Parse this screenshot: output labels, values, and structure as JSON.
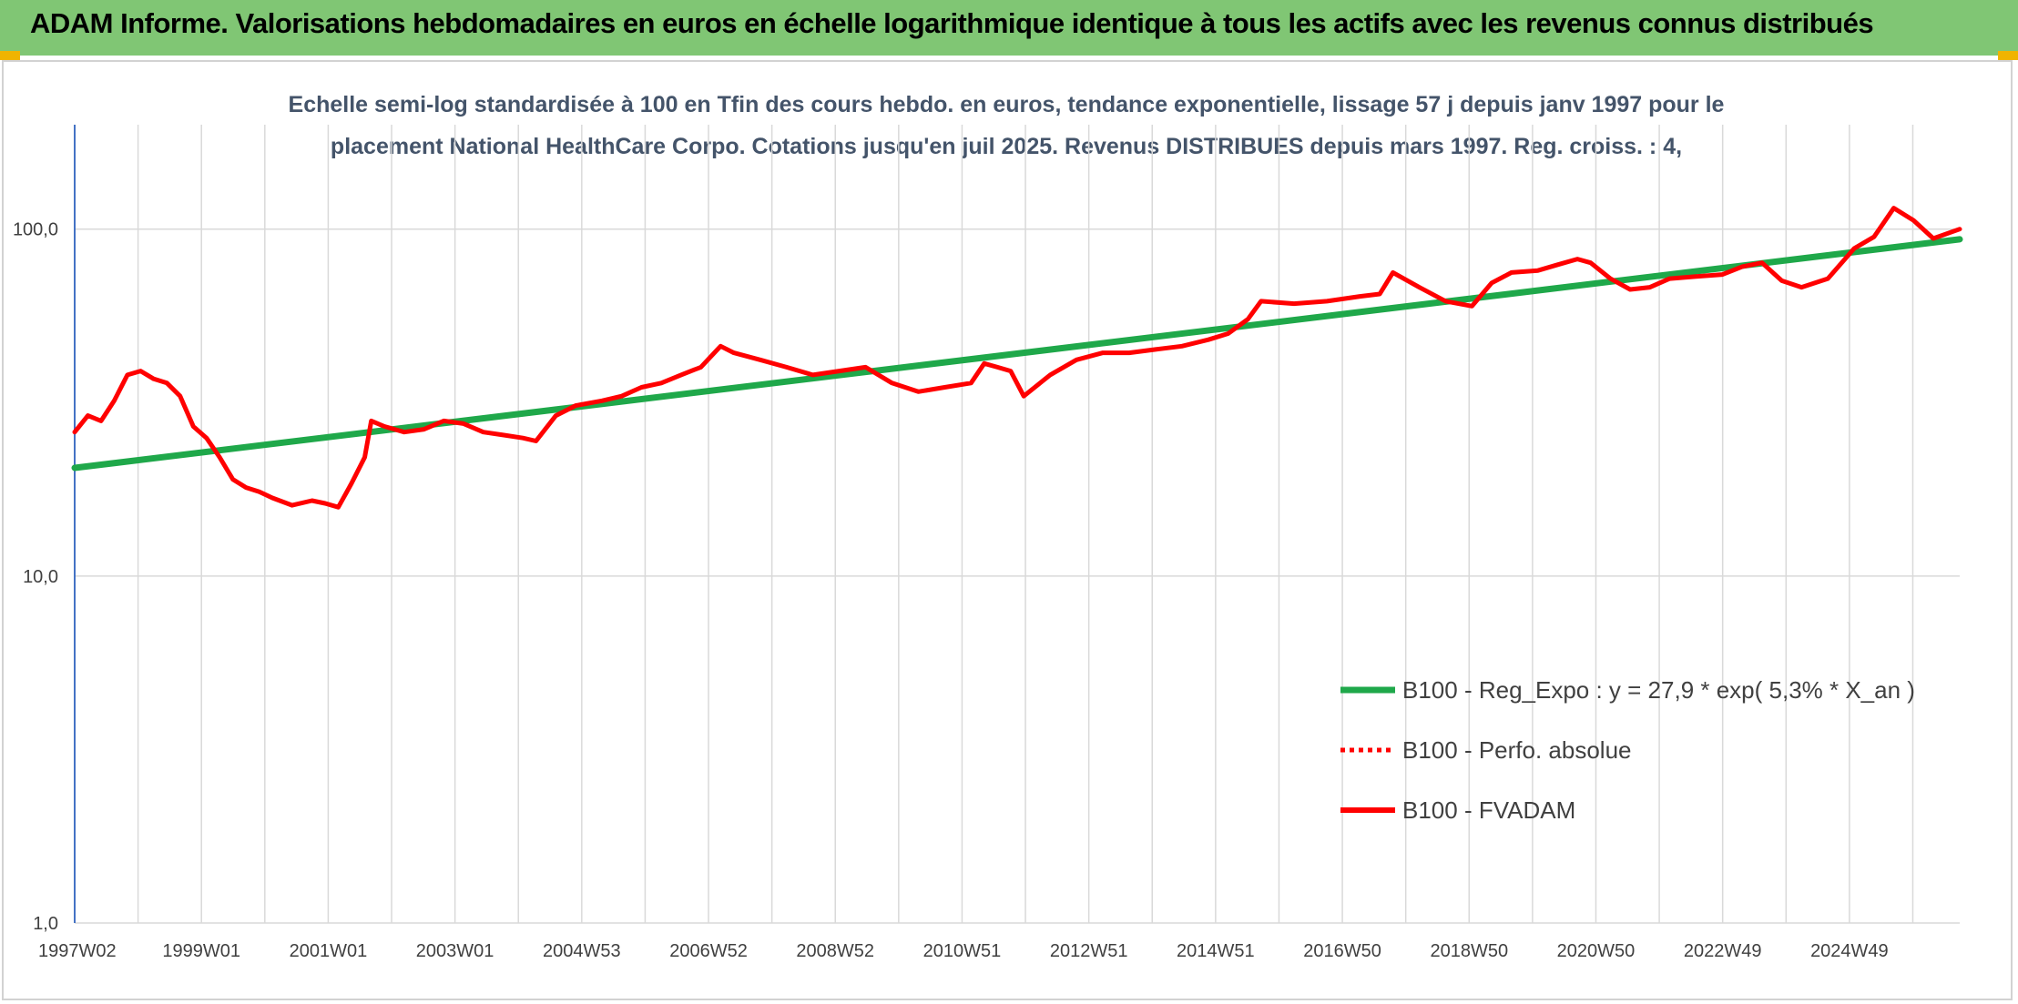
{
  "header": {
    "title": "ADAM Informe. Valorisations hebdomadaires en euros en échelle logarithmique identique à tous les actifs avec les revenus connus distribués"
  },
  "colors": {
    "banner": "#80c674",
    "regression": "#1fa84a",
    "series": "#ff0000",
    "grid": "#d9d9d9",
    "axis": "#4472c4"
  },
  "chart_data": {
    "type": "line",
    "title_lines": [
      "Echelle semi-log standardisée à 100 en Tfin des cours hebdo. en euros, tendance exponentielle, lissage 57 j depuis janv 1997 pour le",
      "placement National HealthCare Corpo. Cotations jusqu'en juil 2025. Revenus DISTRIBUES depuis mars 1997. Reg. croiss. : 4,"
    ],
    "y_scale": "log",
    "ylim": [
      1,
      200
    ],
    "y_ticks": [
      "1,0",
      "10,0",
      "100,0"
    ],
    "x_range_years": [
      1997.0,
      2025.6
    ],
    "x_tick_labels": [
      "1997W02",
      "1999W01",
      "2001W01",
      "2003W01",
      "2004W53",
      "2006W52",
      "2008W52",
      "2010W51",
      "2012W51",
      "2014W51",
      "2016W50",
      "2018W50",
      "2020W50",
      "2022W49",
      "2024W49"
    ],
    "grid": true,
    "legend_position": "lower-right",
    "legend": [
      "B100 - Reg_Expo : y = 27,9 * exp( 5,3% *  X_an )",
      "B100 - Perfo. absolue",
      "B100 - FVADAM"
    ],
    "series": [
      {
        "name": "B100 - Reg_Expo : y = 27,9 * exp( 5,3% *  X_an )",
        "style": "solid-green",
        "x": [
          1997.0,
          2025.6
        ],
        "y": [
          20.5,
          93.5
        ]
      },
      {
        "name": "B100 - FVADAM",
        "style": "solid-red",
        "x": [
          1997.0,
          1997.2,
          1997.4,
          1997.6,
          1997.8,
          1998.0,
          1998.2,
          1998.4,
          1998.6,
          1998.8,
          1999.0,
          1999.2,
          1999.4,
          1999.6,
          1999.8,
          2000.0,
          2000.3,
          2000.6,
          2000.8,
          2001.0,
          2001.2,
          2001.4,
          2001.5,
          2001.7,
          2002.0,
          2002.3,
          2002.6,
          2002.9,
          2003.2,
          2003.5,
          2003.8,
          2004.0,
          2004.3,
          2004.6,
          2005.0,
          2005.3,
          2005.6,
          2005.9,
          2006.2,
          2006.5,
          2006.8,
          2007.0,
          2007.4,
          2007.8,
          2008.2,
          2008.6,
          2009.0,
          2009.4,
          2009.8,
          2010.2,
          2010.6,
          2010.8,
          2011.0,
          2011.2,
          2011.4,
          2011.8,
          2012.2,
          2012.6,
          2013.0,
          2013.4,
          2013.8,
          2014.2,
          2014.5,
          2014.8,
          2015.0,
          2015.5,
          2016.0,
          2016.5,
          2016.8,
          2017.0,
          2017.4,
          2017.8,
          2018.2,
          2018.5,
          2018.8,
          2019.2,
          2019.5,
          2019.8,
          2020.0,
          2020.3,
          2020.6,
          2020.9,
          2021.2,
          2021.6,
          2022.0,
          2022.3,
          2022.6,
          2022.9,
          2023.2,
          2023.6,
          2024.0,
          2024.3,
          2024.6,
          2024.9,
          2025.2,
          2025.6
        ],
        "y": [
          26,
          29,
          28,
          32,
          38,
          39,
          37,
          36,
          33,
          27,
          25,
          22,
          19,
          18,
          17.5,
          16.8,
          16,
          16.5,
          16.2,
          15.8,
          18.5,
          22,
          28,
          27,
          26,
          26.5,
          28,
          27.5,
          26,
          25.5,
          25,
          24.5,
          29,
          31,
          32,
          33,
          35,
          36,
          38,
          40,
          46,
          44,
          42,
          40,
          38,
          39,
          40,
          36,
          34,
          35,
          36,
          41,
          40,
          39,
          33,
          38,
          42,
          44,
          44,
          45,
          46,
          48,
          50,
          55,
          62,
          61,
          62,
          64,
          65,
          75,
          68,
          62,
          60,
          70,
          75,
          76,
          79,
          82,
          80,
          72,
          67,
          68,
          72,
          73,
          74,
          78,
          80,
          71,
          68,
          72,
          88,
          95,
          115,
          106,
          94,
          100
        ]
      }
    ]
  }
}
